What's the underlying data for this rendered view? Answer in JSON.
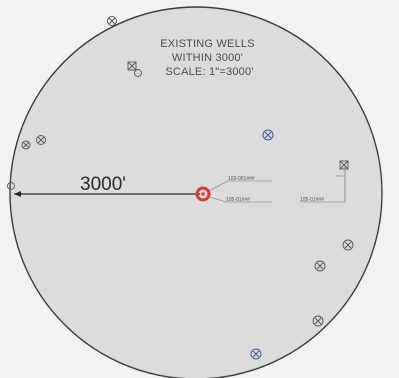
{
  "title": {
    "line1": "EXISTING WELLS",
    "line2": "WITHIN 3000'",
    "line3": "SCALE: 1\"=3000'"
  },
  "radius_label": "3000'",
  "center_well": {
    "color": "#d83a3a"
  },
  "colors": {
    "circle_fill": "#dcdcdc",
    "circle_stroke": "#3c3c3c",
    "background": "#f2f2f0"
  },
  "well_symbol_icon": "circled-x-well-icon",
  "near_labels": {
    "label_a": "103-001###",
    "label_b": "105-01###",
    "label_c": "105-01###"
  }
}
